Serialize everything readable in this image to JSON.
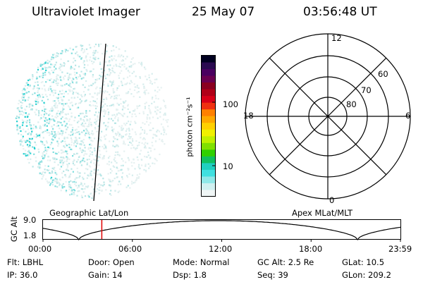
{
  "header": {
    "instrument": "Ultraviolet Imager",
    "date": "25 May 07",
    "time": "03:56:48 UT"
  },
  "colorbar": {
    "unit_label": "photon cm⁻²s⁻¹",
    "ticks": [
      "100",
      "10"
    ],
    "colors": [
      "#000020",
      "#2a0a50",
      "#4a0060",
      "#6a0050",
      "#8a0020",
      "#b00018",
      "#d80018",
      "#f03010",
      "#ff8000",
      "#ffa800",
      "#ffd000",
      "#f0f000",
      "#c0f000",
      "#80e000",
      "#30d000",
      "#10c060",
      "#20d0c0",
      "#40e0e0",
      "#90e8e8",
      "#d0f0f0",
      "#f0f6f6"
    ]
  },
  "polar": {
    "mlt_labels": [
      "12",
      "18",
      "6",
      "0"
    ],
    "mlat_labels": [
      "60",
      "70",
      "80"
    ]
  },
  "timeline": {
    "left_label": "Geographic Lat/Lon",
    "right_label": "Apex MLat/MLT",
    "ylabel": "GC Alt",
    "ytick_top": "9.0",
    "ytick_bottom": "1.8",
    "xticks": [
      "00:00",
      "06:00",
      "12:00",
      "18:00",
      "23:59"
    ],
    "marker_color": "#e00000"
  },
  "info": {
    "flt": "Flt: LBHL",
    "door": "Door: Open",
    "mode": "Mode: Normal",
    "gcalt": "GC Alt: 2.5 Re",
    "glat": "GLat:  10.5",
    "ip": "IP: 36.0",
    "gain": "Gain: 14",
    "dsp": "Dsp:    1.8",
    "seq": "Seq: 39",
    "glon": "GLon: 209.2"
  }
}
